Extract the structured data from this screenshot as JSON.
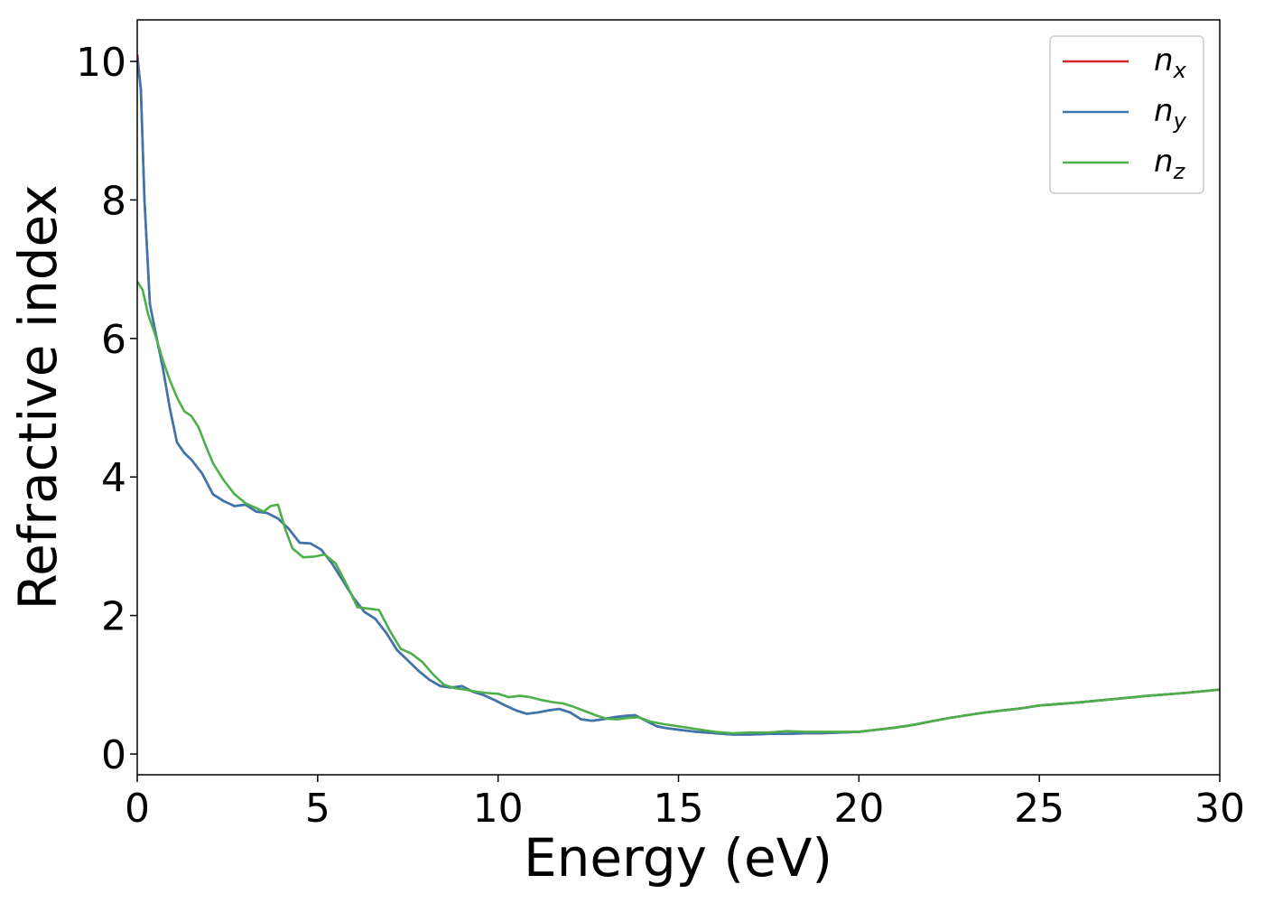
{
  "chart_data": {
    "type": "line",
    "xlabel": "Energy (eV)",
    "ylabel": "Refractive index",
    "xlim": [
      0,
      30
    ],
    "ylim": [
      -0.3,
      10.6
    ],
    "xticks": [
      0,
      5,
      10,
      15,
      20,
      25,
      30
    ],
    "yticks": [
      0,
      2,
      4,
      6,
      8,
      10
    ],
    "grid": false,
    "legend_position": "top-right",
    "series": [
      {
        "name": "n",
        "subscript": "x",
        "color": "#d62728",
        "x": [
          0,
          0.1,
          0.2,
          0.35,
          0.5,
          0.7,
          0.9,
          1.1,
          1.3,
          1.5,
          1.8,
          2.1,
          2.4,
          2.7,
          3.0,
          3.3,
          3.6,
          3.9,
          4.2,
          4.5,
          4.8,
          5.1,
          5.4,
          5.7,
          6.0,
          6.3,
          6.6,
          6.9,
          7.2,
          7.5,
          7.8,
          8.1,
          8.4,
          8.7,
          9.0,
          9.3,
          9.6,
          9.9,
          10.2,
          10.5,
          10.8,
          11.1,
          11.4,
          11.7,
          12.0,
          12.3,
          12.6,
          12.9,
          13.2,
          13.5,
          13.8,
          14.1,
          14.4,
          14.7,
          15.0,
          15.5,
          16.0,
          16.5,
          17.0,
          17.5,
          18.0,
          18.5,
          19.0,
          19.5,
          20.0,
          20.5,
          21.0,
          21.5,
          22.0,
          22.5,
          23.0,
          23.5,
          24.0,
          24.5,
          25.0,
          26.0,
          27.0,
          28.0,
          29.0,
          30.0
        ],
        "y": [
          10.1,
          9.6,
          8.0,
          6.5,
          6.1,
          5.6,
          5.0,
          4.5,
          4.35,
          4.25,
          4.05,
          3.75,
          3.65,
          3.58,
          3.6,
          3.5,
          3.48,
          3.4,
          3.25,
          3.05,
          3.04,
          2.95,
          2.75,
          2.5,
          2.25,
          2.05,
          1.95,
          1.75,
          1.5,
          1.35,
          1.2,
          1.07,
          0.98,
          0.96,
          0.98,
          0.9,
          0.85,
          0.78,
          0.7,
          0.63,
          0.58,
          0.6,
          0.63,
          0.65,
          0.6,
          0.5,
          0.48,
          0.5,
          0.53,
          0.55,
          0.56,
          0.48,
          0.4,
          0.37,
          0.35,
          0.32,
          0.3,
          0.28,
          0.28,
          0.29,
          0.29,
          0.3,
          0.3,
          0.31,
          0.32,
          0.35,
          0.38,
          0.42,
          0.47,
          0.52,
          0.56,
          0.6,
          0.63,
          0.66,
          0.7,
          0.74,
          0.79,
          0.84,
          0.88,
          0.93
        ]
      },
      {
        "name": "n",
        "subscript": "y",
        "color": "#3a77b0",
        "x": [
          0,
          0.1,
          0.2,
          0.35,
          0.5,
          0.7,
          0.9,
          1.1,
          1.3,
          1.5,
          1.8,
          2.1,
          2.4,
          2.7,
          3.0,
          3.3,
          3.6,
          3.9,
          4.2,
          4.5,
          4.8,
          5.1,
          5.4,
          5.7,
          6.0,
          6.3,
          6.6,
          6.9,
          7.2,
          7.5,
          7.8,
          8.1,
          8.4,
          8.7,
          9.0,
          9.3,
          9.6,
          9.9,
          10.2,
          10.5,
          10.8,
          11.1,
          11.4,
          11.7,
          12.0,
          12.3,
          12.6,
          12.9,
          13.2,
          13.5,
          13.8,
          14.1,
          14.4,
          14.7,
          15.0,
          15.5,
          16.0,
          16.5,
          17.0,
          17.5,
          18.0,
          18.5,
          19.0,
          19.5,
          20.0,
          20.5,
          21.0,
          21.5,
          22.0,
          22.5,
          23.0,
          23.5,
          24.0,
          24.5,
          25.0,
          26.0,
          27.0,
          28.0,
          29.0,
          30.0
        ],
        "y": [
          10.05,
          9.6,
          8.0,
          6.5,
          6.1,
          5.6,
          5.0,
          4.5,
          4.35,
          4.25,
          4.05,
          3.75,
          3.65,
          3.58,
          3.6,
          3.5,
          3.48,
          3.4,
          3.25,
          3.05,
          3.04,
          2.95,
          2.75,
          2.5,
          2.25,
          2.05,
          1.95,
          1.75,
          1.5,
          1.35,
          1.2,
          1.07,
          0.98,
          0.96,
          0.98,
          0.9,
          0.85,
          0.78,
          0.7,
          0.63,
          0.58,
          0.6,
          0.63,
          0.65,
          0.6,
          0.5,
          0.48,
          0.5,
          0.53,
          0.55,
          0.56,
          0.48,
          0.4,
          0.37,
          0.35,
          0.32,
          0.3,
          0.28,
          0.28,
          0.29,
          0.29,
          0.3,
          0.3,
          0.31,
          0.32,
          0.35,
          0.38,
          0.42,
          0.47,
          0.52,
          0.56,
          0.6,
          0.63,
          0.66,
          0.7,
          0.74,
          0.79,
          0.84,
          0.88,
          0.93
        ]
      },
      {
        "name": "n",
        "subscript": "z",
        "color": "#4daf4a",
        "x": [
          0,
          0.15,
          0.3,
          0.5,
          0.7,
          0.9,
          1.1,
          1.3,
          1.5,
          1.7,
          1.9,
          2.1,
          2.4,
          2.7,
          3.0,
          3.3,
          3.5,
          3.7,
          3.9,
          4.1,
          4.3,
          4.6,
          4.9,
          5.2,
          5.5,
          5.8,
          6.1,
          6.4,
          6.7,
          7.0,
          7.3,
          7.6,
          7.9,
          8.2,
          8.5,
          8.8,
          9.1,
          9.4,
          9.7,
          10.0,
          10.3,
          10.6,
          10.9,
          11.2,
          11.5,
          11.8,
          12.1,
          12.4,
          12.7,
          13.0,
          13.3,
          13.6,
          13.9,
          14.2,
          14.6,
          15.0,
          15.5,
          16.0,
          16.5,
          17.0,
          17.5,
          18.0,
          18.5,
          19.0,
          19.5,
          20.0,
          20.5,
          21.0,
          21.5,
          22.0,
          22.5,
          23.0,
          23.5,
          24.0,
          24.5,
          25.0,
          26.0,
          27.0,
          28.0,
          29.0,
          30.0
        ],
        "y": [
          6.82,
          6.7,
          6.35,
          6.05,
          5.7,
          5.4,
          5.15,
          4.95,
          4.88,
          4.72,
          4.45,
          4.2,
          3.95,
          3.75,
          3.62,
          3.55,
          3.5,
          3.58,
          3.6,
          3.25,
          2.97,
          2.84,
          2.85,
          2.88,
          2.75,
          2.45,
          2.12,
          2.1,
          2.08,
          1.78,
          1.52,
          1.45,
          1.33,
          1.15,
          1.0,
          0.95,
          0.93,
          0.9,
          0.88,
          0.87,
          0.82,
          0.84,
          0.82,
          0.78,
          0.75,
          0.73,
          0.68,
          0.62,
          0.56,
          0.51,
          0.5,
          0.52,
          0.53,
          0.47,
          0.43,
          0.4,
          0.36,
          0.32,
          0.3,
          0.31,
          0.31,
          0.33,
          0.32,
          0.32,
          0.32,
          0.32,
          0.35,
          0.38,
          0.42,
          0.47,
          0.52,
          0.56,
          0.6,
          0.63,
          0.66,
          0.7,
          0.74,
          0.79,
          0.84,
          0.88,
          0.93
        ]
      }
    ]
  }
}
